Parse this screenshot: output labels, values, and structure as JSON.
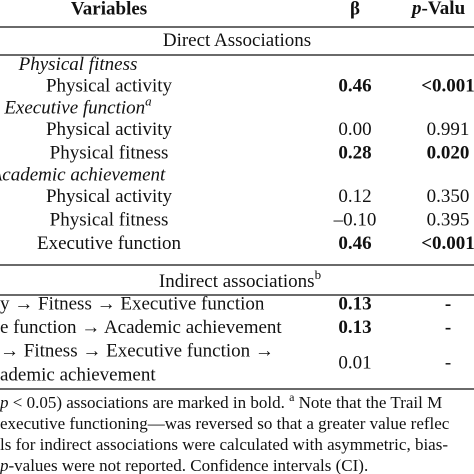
{
  "header": {
    "variables": "Variables",
    "beta": "β",
    "p_italic": "p",
    "p_rest": "-Valu"
  },
  "sections": [
    {
      "title": "Direct Associations",
      "groups": [
        {
          "name": "Physical fitness",
          "rows": [
            {
              "label": "Physical activity",
              "beta": "0.46",
              "p": "<0.001",
              "bold": true
            }
          ]
        },
        {
          "name": "Executive function",
          "sup": "a",
          "rows": [
            {
              "label": "Physical activity",
              "beta": "0.00",
              "p": "0.991",
              "bold": false
            },
            {
              "label": "Physical fitness",
              "beta": "0.28",
              "p": "0.020",
              "bold": true
            }
          ]
        },
        {
          "name": "Academic achievement",
          "rows": [
            {
              "label": "Physical activity",
              "beta": "0.12",
              "p": "0.350",
              "bold": false
            },
            {
              "label": "Physical fitness",
              "beta": "–0.10",
              "p": "0.395",
              "bold": false
            },
            {
              "label": "Executive function",
              "beta": "0.46",
              "p": "<0.001",
              "bold": true
            }
          ]
        }
      ]
    },
    {
      "title": "Indirect associations",
      "sup": "b",
      "rows": [
        {
          "lines": [
            "y → Fitness → Executive function"
          ],
          "beta": "0.13",
          "p": "-",
          "bold": true
        },
        {
          "lines": [
            "e function → Academic achievement"
          ],
          "beta": "0.13",
          "p": "-",
          "bold": true
        },
        {
          "lines": [
            "→ Fitness → Executive function →",
            "ademic achievement"
          ],
          "beta": "0.01",
          "p": "-",
          "bold": false
        }
      ]
    }
  ],
  "footnotes": [
    [
      {
        "text": "p",
        "italic": true
      },
      {
        "text": " < 0.05) associations are marked in bold. "
      },
      {
        "text": "a",
        "sup": true
      },
      {
        "text": " Note that the Trail M"
      }
    ],
    [
      {
        "text": "executive functioning—was reversed so that a greater value reflec"
      }
    ],
    [
      {
        "text": "ls for indirect associations were calculated with asymmetric, bias-"
      }
    ],
    [
      {
        "text": "p",
        "italic": true
      },
      {
        "text": "-values were not reported. Confidence intervals (CI)."
      }
    ]
  ]
}
